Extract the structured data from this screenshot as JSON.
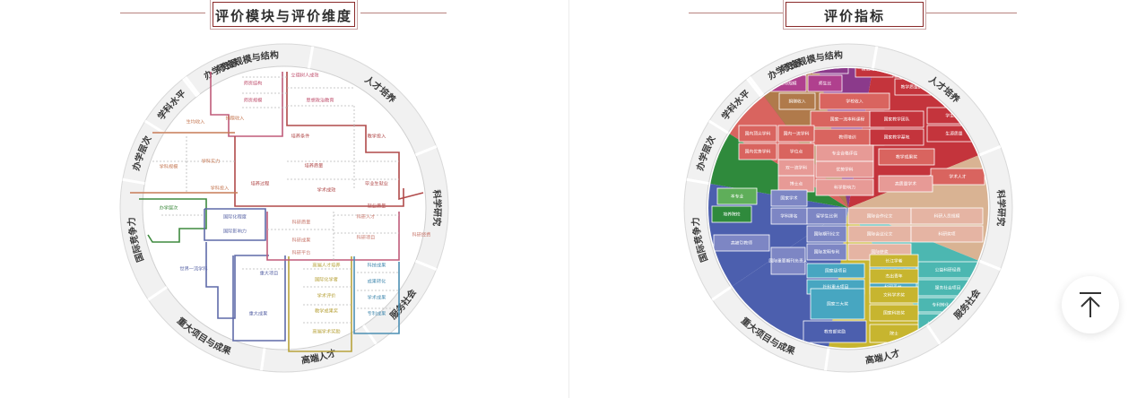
{
  "left": {
    "title": "评价模块与评价维度",
    "ring_labels": [
      "师资规模与结构",
      "人才培养",
      "科学研究",
      "服务社会",
      "高端人才",
      "重大项目与成果",
      "国际竞争力",
      "办学层次",
      "学科水平",
      "办学资源"
    ],
    "cells": [
      "立德树人成效",
      "师资结构",
      "思想政治教育",
      "师资规模",
      "生均收入",
      "捐赠收入",
      "培养条件",
      "教学投入",
      "学科实力",
      "学科规模",
      "培养过程",
      "学科投入",
      "学术成效",
      "培养质量",
      "毕业生就业",
      "就业质量",
      "科研质量",
      "办学层次",
      "国际化程度",
      "国际影响力",
      "科研成果",
      "科研人才",
      "科研平台",
      "科研项目",
      "科研经费",
      "世界一流学科",
      "重大项目",
      "重大成果",
      "高端人才培养",
      "国际化学者",
      "教学成果奖",
      "学术成果",
      "专利成果",
      "学术评价",
      "成果转化",
      "科技成果",
      "高端学术奖励"
    ],
    "colors": {
      "ring_border": "#dddddd",
      "ring_fill": "#f2f2f2",
      "text": "#333333"
    }
  },
  "right": {
    "title": "评价指标",
    "ring_labels": [
      "师资规模与结构",
      "人才培养",
      "科学研究",
      "服务社会",
      "高端人才",
      "重大项目与成果",
      "国际竞争力",
      "办学层次",
      "学科水平",
      "办学资源"
    ],
    "cells": [
      "学历结构",
      "职称结构",
      "生师规模",
      "师生比",
      "捐赠收入",
      "学校收入",
      "国家级与认证专业",
      "模范先进教师",
      "模范先进学生",
      "高校课程教学",
      "教学质量执行",
      "学生就业",
      "国家一流本科课程",
      "教师培训",
      "生源质量",
      "国内顶尖学科",
      "国内一流学科",
      "国家教学团队",
      "国家教学基地",
      "国内优势学科",
      "学位点",
      "专业合格评估",
      "双一流学科",
      "优势学科",
      "教学成果奖",
      "博士点",
      "学术人才",
      "高质量学术",
      "本专业",
      "培养院校",
      "科学影响力",
      "国家学术",
      "学科排名",
      "高被引教师",
      "留学生比例",
      "国际合作论文",
      "国际期刊论文",
      "国际会议论文",
      "国际发明专利",
      "科研人员规模",
      "科研奖项",
      "国际重要期刊负责人",
      "国家级项目",
      "国际获奖",
      "社科重大项目",
      "自然科学重大项目",
      "科研平台",
      "公益科研经费",
      "服务社会项目",
      "专利转化",
      "技术转让收入",
      "国家三大奖",
      "文科学术奖",
      "国家科技奖",
      "杰出青年",
      "长江学者",
      "院士",
      "教育部奖励"
    ],
    "colors": {
      "brown": "#b07a4b",
      "purple": "#8b3a8b",
      "magenta": "#b0408e",
      "red": "#c4343c",
      "red_light": "#d9645f",
      "pink": "#e79a96",
      "green": "#2f8a3c",
      "green_light": "#5fae5a",
      "blue": "#4c5fae",
      "blue_light": "#7d86c4",
      "cyan": "#47a6c1",
      "olive": "#a7a73a",
      "yellow": "#c7b52f",
      "teal": "#4cb7b1",
      "tan": "#d9b393",
      "salmon": "#e5b4a3"
    }
  },
  "back_to_top": "back-to-top"
}
